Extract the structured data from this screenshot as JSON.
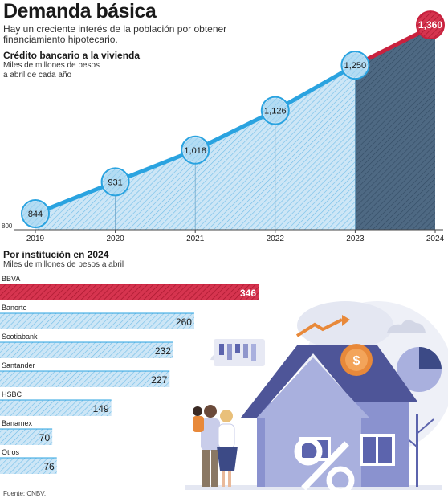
{
  "header": {
    "title": "Demanda básica",
    "subtitle": "Hay un creciente interés de la población por obtener financiamiento hipotecario."
  },
  "line_section": {
    "title": "Crédito bancario a la vivienda",
    "unit_line1": "Miles de millones de pesos",
    "unit_line2": "a abril de cada año"
  },
  "bar_section": {
    "title": "Por institución en 2024",
    "unit": "Miles de millones de pesos a abril"
  },
  "source": "Fuente: CNBV.",
  "colors": {
    "blue": "#3aa7e0",
    "red": "#c9213e",
    "dark": "#3c5b78",
    "illustration_purple": "#5c64ad",
    "illustration_light": "#a9b0de",
    "illustration_orange": "#e8893a"
  },
  "chart_data": [
    {
      "type": "area",
      "title": "Crédito bancario a la vivienda",
      "ylabel": "Miles de millones de pesos a abril de cada año",
      "x": [
        "2019",
        "2020",
        "2021",
        "2022",
        "2023",
        "2024"
      ],
      "values": [
        844,
        931,
        1018,
        1126,
        1250,
        1360
      ],
      "value_labels": [
        "844",
        "931",
        "1,018",
        "1,126",
        "1,250",
        "1,360"
      ],
      "y_min_label": "800",
      "ylim": [
        800,
        1380
      ],
      "highlight": "2024"
    },
    {
      "type": "bar",
      "orientation": "horizontal",
      "title": "Por institución en 2024",
      "unit": "Miles de millones de pesos a abril",
      "categories": [
        "BBVA",
        "Banorte",
        "Scotiabank",
        "Santander",
        "HSBC",
        "Banamex",
        "Otros"
      ],
      "values": [
        346,
        260,
        232,
        227,
        149,
        70,
        76
      ],
      "value_labels": [
        "346",
        "260",
        "232",
        "227",
        "149",
        "70",
        "76"
      ],
      "highlight": "BBVA"
    }
  ]
}
